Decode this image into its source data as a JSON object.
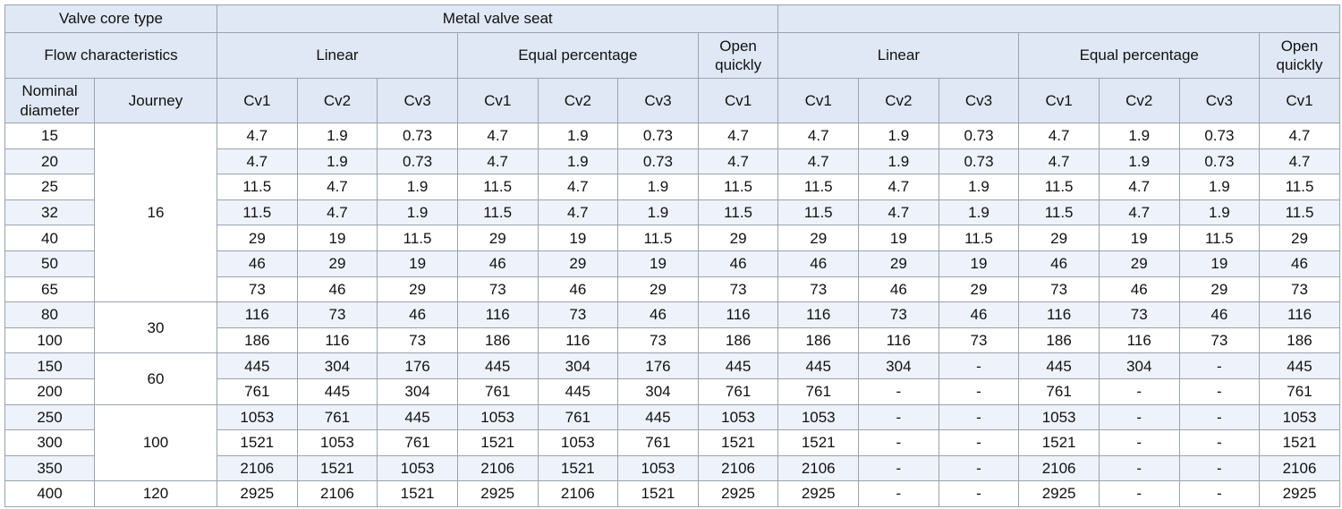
{
  "table": {
    "core_type_label": "Valve core type",
    "seat_label": "Metal valve seat",
    "flow_label": "Flow characteristics",
    "groups": [
      "Linear",
      "Equal percentage",
      "Open quickly",
      "Linear",
      "Equal percentage",
      "Open quickly"
    ],
    "diameter_label": "Nominal diameter",
    "journey_label": "Journey",
    "columns": [
      "Cv1",
      "Cv2",
      "Cv3",
      "Cv1",
      "Cv2",
      "Cv3",
      "Cv1",
      "Cv1",
      "Cv2",
      "Cv3",
      "Cv1",
      "Cv2",
      "Cv3",
      "Cv1"
    ],
    "journeys": [
      16,
      30,
      60,
      100,
      120
    ],
    "rows": [
      {
        "diameter": 15,
        "values": [
          4.7,
          1.9,
          0.73,
          4.7,
          1.9,
          0.73,
          4.7,
          4.7,
          1.9,
          0.73,
          4.7,
          1.9,
          0.73,
          4.7
        ]
      },
      {
        "diameter": 20,
        "values": [
          4.7,
          1.9,
          0.73,
          4.7,
          1.9,
          0.73,
          4.7,
          4.7,
          1.9,
          0.73,
          4.7,
          1.9,
          0.73,
          4.7
        ]
      },
      {
        "diameter": 25,
        "values": [
          11.5,
          4.7,
          1.9,
          11.5,
          4.7,
          1.9,
          11.5,
          11.5,
          4.7,
          1.9,
          11.5,
          4.7,
          1.9,
          11.5
        ]
      },
      {
        "diameter": 32,
        "values": [
          11.5,
          4.7,
          1.9,
          11.5,
          4.7,
          1.9,
          11.5,
          11.5,
          4.7,
          1.9,
          11.5,
          4.7,
          1.9,
          11.5
        ]
      },
      {
        "diameter": 40,
        "values": [
          29,
          19,
          11.5,
          29,
          19,
          11.5,
          29,
          29,
          19,
          11.5,
          29,
          19,
          11.5,
          29
        ]
      },
      {
        "diameter": 50,
        "values": [
          46,
          29,
          19,
          46,
          29,
          19,
          46,
          46,
          29,
          19,
          46,
          29,
          19,
          46
        ]
      },
      {
        "diameter": 65,
        "values": [
          73,
          46,
          29,
          73,
          46,
          29,
          73,
          73,
          46,
          29,
          73,
          46,
          29,
          73
        ]
      },
      {
        "diameter": 80,
        "values": [
          116,
          73,
          46,
          116,
          73,
          46,
          116,
          116,
          73,
          46,
          116,
          73,
          46,
          116
        ]
      },
      {
        "diameter": 100,
        "values": [
          186,
          116,
          73,
          186,
          116,
          73,
          186,
          186,
          116,
          73,
          186,
          116,
          73,
          186
        ]
      },
      {
        "diameter": 150,
        "values": [
          445,
          304,
          176,
          445,
          304,
          176,
          445,
          445,
          304,
          "-",
          445,
          304,
          "-",
          445
        ]
      },
      {
        "diameter": 200,
        "values": [
          761,
          445,
          304,
          761,
          445,
          304,
          761,
          761,
          "-",
          "-",
          761,
          "-",
          "-",
          761
        ]
      },
      {
        "diameter": 250,
        "values": [
          1053,
          761,
          445,
          1053,
          761,
          445,
          1053,
          1053,
          "-",
          "-",
          1053,
          "-",
          "-",
          1053
        ]
      },
      {
        "diameter": 300,
        "values": [
          1521,
          1053,
          761,
          1521,
          1053,
          761,
          1521,
          1521,
          "-",
          "-",
          1521,
          "-",
          "-",
          1521
        ]
      },
      {
        "diameter": 350,
        "values": [
          2106,
          1521,
          1053,
          2106,
          1521,
          1053,
          2106,
          2106,
          "-",
          "-",
          2106,
          "-",
          "-",
          2106
        ]
      },
      {
        "diameter": 400,
        "values": [
          2925,
          2106,
          1521,
          2925,
          2106,
          1521,
          2925,
          2925,
          "-",
          "-",
          2925,
          "-",
          "-",
          2925
        ]
      }
    ]
  }
}
